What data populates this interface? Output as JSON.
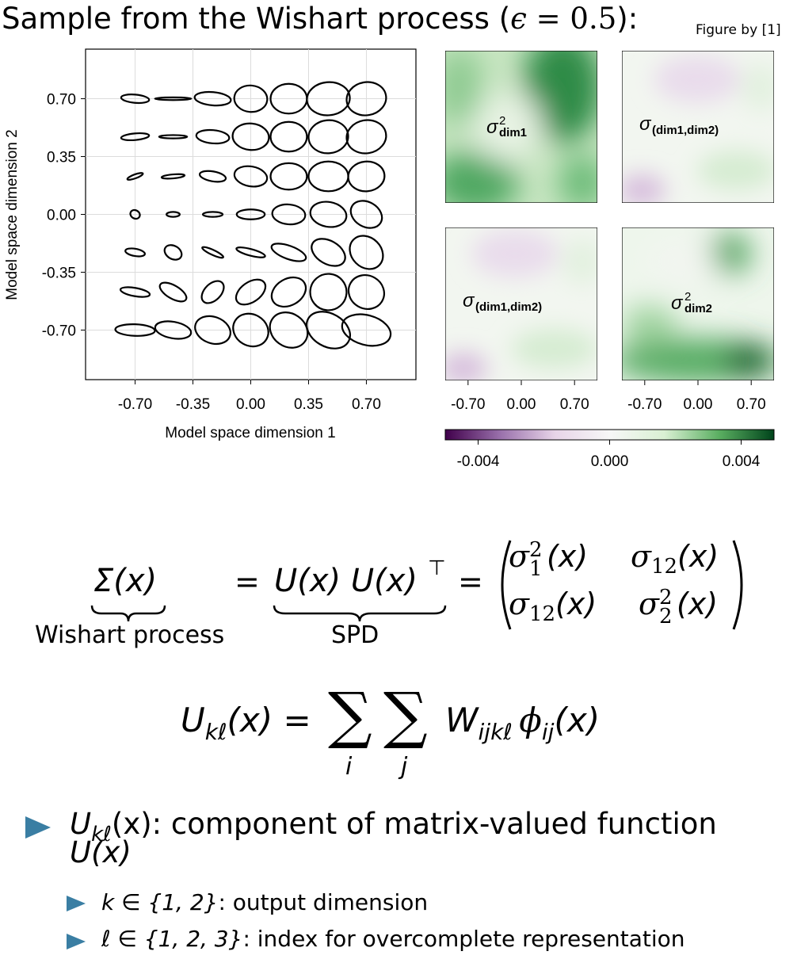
{
  "slide": {
    "title_prefix": "Sample from the Wishart process (",
    "title_eps": "ϵ",
    "title_eq": " = 0.5",
    "title_suffix": "):",
    "credit": "Figure by [1]"
  },
  "chart_data": [
    {
      "type": "scatter",
      "xlabel": "Model space dimension 1",
      "ylabel": "Model space dimension 2",
      "xticks": [
        "-0.70",
        "-0.35",
        "0.00",
        "0.35",
        "0.70"
      ],
      "yticks": [
        "0.70",
        "0.35",
        "0.00",
        "-0.35",
        "-0.70"
      ],
      "xlim": [
        -1.0,
        1.0
      ],
      "ylim": [
        -1.0,
        1.0
      ],
      "grid": true,
      "grid_x": [
        -0.7,
        -0.47,
        -0.23,
        0.0,
        0.23,
        0.47,
        0.7
      ],
      "grid_y": [
        0.7,
        0.47,
        0.23,
        0.0,
        -0.23,
        -0.47,
        -0.7
      ],
      "ellipse_rx": [
        [
          0.085,
          0.11,
          0.11,
          0.1,
          0.11,
          0.13,
          0.12
        ],
        [
          0.085,
          0.085,
          0.1,
          0.11,
          0.11,
          0.12,
          0.12
        ],
        [
          0.05,
          0.07,
          0.08,
          0.1,
          0.11,
          0.12,
          0.11
        ],
        [
          0.025,
          0.04,
          0.06,
          0.085,
          0.1,
          0.11,
          0.1
        ],
        [
          0.022,
          0.04,
          0.07,
          0.09,
          0.11,
          0.11,
          0.11
        ],
        [
          0.025,
          0.04,
          0.08,
          0.1,
          0.11,
          0.11,
          0.1
        ],
        [
          0.035,
          0.05,
          0.08,
          0.095,
          0.1,
          0.1,
          0.09
        ]
      ],
      "ellipse_ry": [
        [
          0.025,
          0.008,
          0.04,
          0.08,
          0.09,
          0.1,
          0.1
        ],
        [
          0.02,
          0.01,
          0.04,
          0.08,
          0.09,
          0.1,
          0.1
        ],
        [
          0.012,
          0.012,
          0.03,
          0.06,
          0.08,
          0.09,
          0.09
        ],
        [
          0.03,
          0.015,
          0.015,
          0.03,
          0.06,
          0.075,
          0.075
        ],
        [
          0.06,
          0.055,
          0.015,
          0.02,
          0.04,
          0.07,
          0.09
        ],
        [
          0.09,
          0.09,
          0.05,
          0.06,
          0.08,
          0.11,
          0.11
        ],
        [
          0.12,
          0.11,
          0.11,
          0.11,
          0.12,
          0.14,
          0.15
        ]
      ],
      "ellipse_angle": [
        [
          -5,
          0,
          -5,
          -5,
          0,
          5,
          10
        ],
        [
          5,
          0,
          -5,
          -5,
          0,
          5,
          10
        ],
        [
          20,
          5,
          -10,
          -10,
          0,
          0,
          5
        ],
        [
          60,
          0,
          0,
          0,
          -5,
          -10,
          -30
        ],
        [
          80,
          60,
          -25,
          -15,
          -20,
          -30,
          -45
        ],
        [
          80,
          60,
          45,
          35,
          30,
          40,
          60
        ],
        [
          88,
          80,
          70,
          60,
          55,
          60,
          75
        ]
      ]
    },
    {
      "type": "heatmap",
      "panels": [
        {
          "label": "σ",
          "sup": "2",
          "sub": "dim1"
        },
        {
          "label": "σ",
          "sup": "",
          "sub": "(dim1,dim2)"
        },
        {
          "label": "σ",
          "sup": "",
          "sub": "(dim1,dim2)"
        },
        {
          "label": "σ",
          "sup": "2",
          "sub": "dim2"
        }
      ],
      "xticks": [
        "-0.70",
        "0.00",
        "0.70"
      ],
      "colorbar": {
        "ticks": [
          "-0.004",
          "0.000",
          "0.004"
        ],
        "vmin": -0.005,
        "vmax": 0.005,
        "colors": [
          "#40004b",
          "#9970ab",
          "#e7d4e8",
          "#f7f7f7",
          "#d9f0d3",
          "#5aae61",
          "#00441b"
        ]
      }
    }
  ],
  "equation1": {
    "lhs": "Σ(x)",
    "lhs_label": "Wishart process",
    "eq": "=",
    "mid": "U(x) U(x)",
    "mid_sup": "⊤",
    "mid_label": "SPD",
    "eq2": "=",
    "m11": "σ",
    "m11_sup": "2",
    "m11_sub": "1",
    "m11_arg": "(x)",
    "m12": "σ",
    "m12_sub": "12",
    "m12_arg": "(x)",
    "m21": "σ",
    "m21_sub": "12",
    "m21_arg": "(x)",
    "m22": "σ",
    "m22_sup": "2",
    "m22_sub": "2",
    "m22_arg": "(x)"
  },
  "equation2": {
    "lhs": "U",
    "lhs_sub": "kℓ",
    "lhs_arg": "(x) =",
    "sum": "∑",
    "sum_i": "i",
    "sum_j": "j",
    "w": "W",
    "w_sub": "ijkℓ",
    "phi": "ϕ",
    "phi_sub": "ij",
    "phi_arg": "(x)"
  },
  "bullets": {
    "b1_sym": "U",
    "b1_sub": "kℓ",
    "b1_text": "(x): component of matrix-valued function",
    "b1_line2": "U(x)",
    "b2_math": "k ∈ {1, 2}",
    "b2_text": ": output dimension",
    "b3_math": "ℓ ∈ {1, 2, 3}",
    "b3_text": ": index for overcomplete representation"
  }
}
